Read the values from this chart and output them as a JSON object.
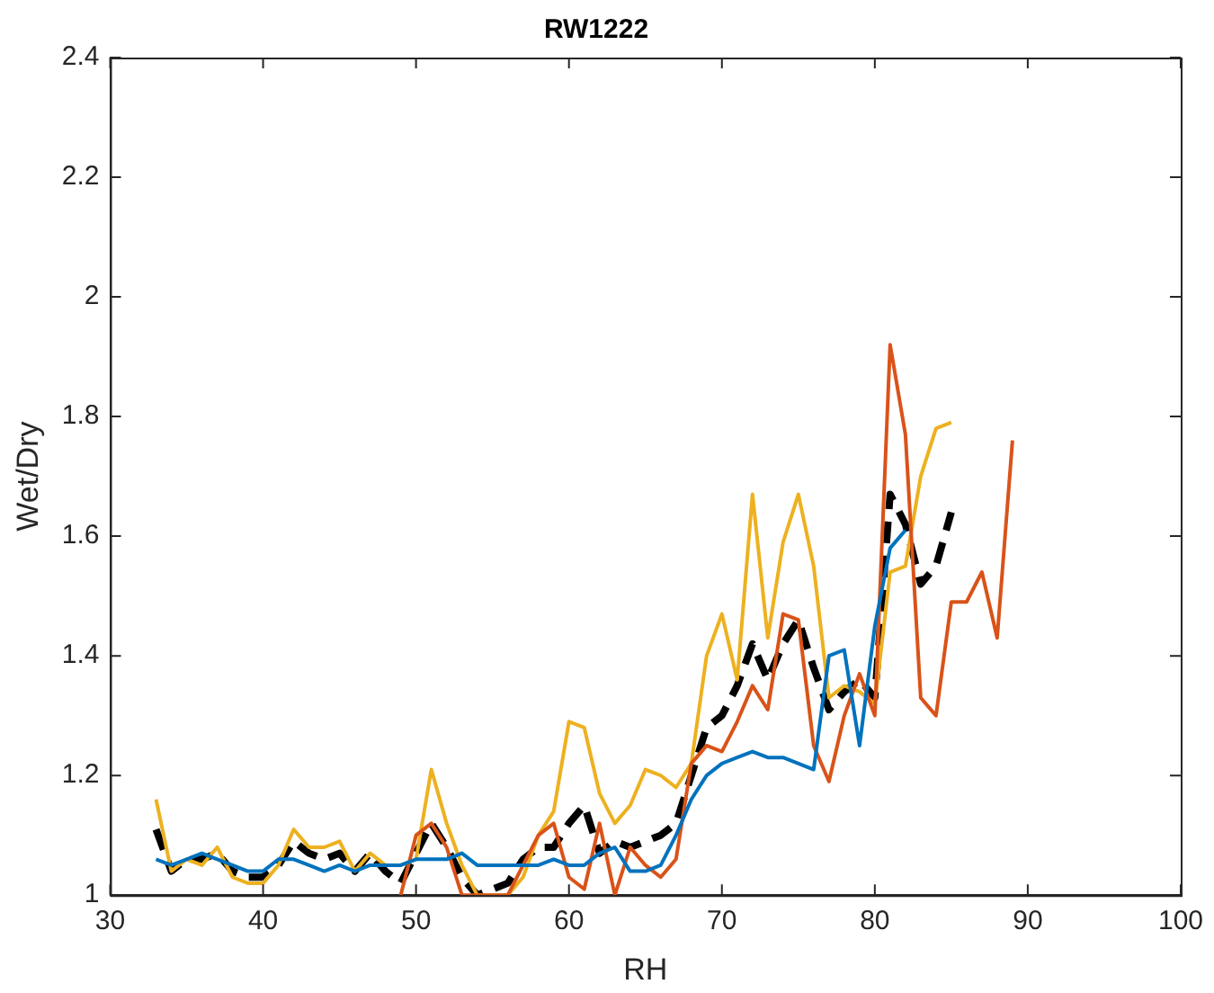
{
  "chart_data": {
    "type": "line",
    "title": "RW1222",
    "xlabel": "RH",
    "ylabel": "Wet/Dry",
    "xlim": [
      30,
      100
    ],
    "xticks": [
      30,
      40,
      50,
      60,
      70,
      80,
      90,
      100
    ],
    "ylim": [
      1,
      2.4
    ],
    "yticks": [
      1,
      1.2,
      1.4,
      1.6,
      1.8,
      2,
      2.2,
      2.4
    ],
    "grid": false,
    "legend": false,
    "marker": "none",
    "series": [
      {
        "color": "#0072bd",
        "x": [
          33,
          34,
          35,
          36,
          37,
          38,
          39,
          40,
          41,
          42,
          43,
          44,
          45,
          46,
          47,
          48,
          49,
          50,
          51,
          52,
          53,
          54,
          55,
          56,
          57,
          58,
          59,
          60,
          61,
          62,
          63,
          64,
          65,
          66,
          67,
          68,
          69,
          70,
          71,
          72,
          73,
          74,
          75,
          76,
          77,
          78,
          79,
          80,
          81,
          82
        ],
        "values": [
          1.06,
          1.05,
          1.06,
          1.07,
          1.06,
          1.05,
          1.04,
          1.04,
          1.06,
          1.06,
          1.05,
          1.04,
          1.05,
          1.04,
          1.05,
          1.05,
          1.05,
          1.06,
          1.06,
          1.06,
          1.07,
          1.05,
          1.05,
          1.05,
          1.05,
          1.05,
          1.06,
          1.05,
          1.05,
          1.07,
          1.08,
          1.04,
          1.04,
          1.05,
          1.1,
          1.16,
          1.2,
          1.22,
          1.23,
          1.24,
          1.23,
          1.23,
          1.22,
          1.21,
          1.4,
          1.41,
          1.25,
          1.45,
          1.58,
          1.61
        ]
      },
      {
        "color": "#d95319",
        "x": [
          49,
          50,
          51,
          52,
          53,
          54,
          55,
          56,
          57,
          58,
          59,
          60,
          61,
          62,
          63,
          64,
          65,
          66,
          67,
          68,
          69,
          70,
          71,
          72,
          73,
          74,
          75,
          76,
          77,
          78,
          79,
          80,
          81,
          82,
          83,
          84,
          85,
          86,
          87,
          88,
          89
        ],
        "values": [
          1.0,
          1.1,
          1.12,
          1.08,
          1.0,
          1.0,
          1.0,
          1.0,
          1.05,
          1.1,
          1.12,
          1.03,
          1.01,
          1.12,
          1.0,
          1.08,
          1.05,
          1.03,
          1.06,
          1.22,
          1.25,
          1.24,
          1.29,
          1.35,
          1.31,
          1.47,
          1.46,
          1.25,
          1.19,
          1.3,
          1.37,
          1.3,
          1.92,
          1.77,
          1.33,
          1.3,
          1.49,
          1.49,
          1.54,
          1.43,
          1.76
        ]
      },
      {
        "color": "#edb120",
        "x": [
          33,
          34,
          35,
          36,
          37,
          38,
          39,
          40,
          41,
          42,
          43,
          44,
          45,
          46,
          47,
          48,
          49,
          50,
          51,
          52,
          53,
          54,
          55,
          56,
          57,
          58,
          59,
          60,
          61,
          62,
          63,
          64,
          65,
          66,
          67,
          68,
          69,
          70,
          71,
          72,
          73,
          74,
          75,
          76,
          77,
          78,
          79,
          80,
          81,
          82,
          83,
          84,
          85
        ],
        "values": [
          1.16,
          1.04,
          1.06,
          1.05,
          1.08,
          1.03,
          1.02,
          1.02,
          1.05,
          1.11,
          1.08,
          1.08,
          1.09,
          1.04,
          1.07,
          1.05,
          1.05,
          1.06,
          1.21,
          1.12,
          1.05,
          1.0,
          1.0,
          1.0,
          1.03,
          1.1,
          1.14,
          1.29,
          1.28,
          1.17,
          1.12,
          1.15,
          1.21,
          1.2,
          1.18,
          1.22,
          1.4,
          1.47,
          1.36,
          1.67,
          1.43,
          1.59,
          1.67,
          1.55,
          1.33,
          1.35,
          1.34,
          1.32,
          1.54,
          1.55,
          1.7,
          1.78,
          1.79
        ]
      },
      {
        "color": "#000000",
        "line_style": "dashed",
        "x": [
          33,
          34,
          35,
          36,
          37,
          38,
          39,
          40,
          41,
          42,
          43,
          44,
          45,
          46,
          47,
          48,
          49,
          50,
          51,
          52,
          53,
          54,
          55,
          56,
          57,
          58,
          59,
          60,
          61,
          62,
          63,
          64,
          65,
          66,
          67,
          68,
          69,
          70,
          71,
          72,
          73,
          74,
          75,
          76,
          77,
          78,
          79,
          80,
          81,
          82,
          83,
          84,
          85
        ],
        "values": [
          1.11,
          1.04,
          1.06,
          1.06,
          1.07,
          1.04,
          1.03,
          1.03,
          1.05,
          1.09,
          1.07,
          1.06,
          1.07,
          1.04,
          1.07,
          1.04,
          1.02,
          1.07,
          1.12,
          1.08,
          1.03,
          1.0,
          1.01,
          1.02,
          1.06,
          1.08,
          1.08,
          1.12,
          1.15,
          1.07,
          1.09,
          1.08,
          1.09,
          1.1,
          1.12,
          1.2,
          1.28,
          1.3,
          1.35,
          1.42,
          1.36,
          1.42,
          1.46,
          1.38,
          1.31,
          1.34,
          1.36,
          1.33,
          1.67,
          1.62,
          1.52,
          1.55,
          1.64
        ]
      }
    ]
  }
}
